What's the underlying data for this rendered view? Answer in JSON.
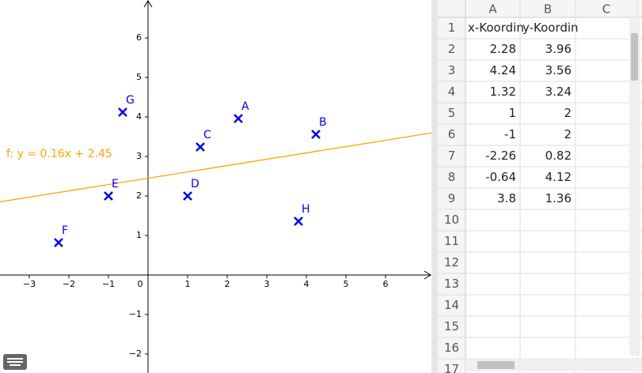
{
  "graphics": {
    "xlim": [
      -3.74,
      7.16
    ],
    "ylim": [
      -2.48,
      6.96
    ],
    "xticks": [
      {
        "value": -3,
        "label": "−3"
      },
      {
        "value": -2,
        "label": "−2"
      },
      {
        "value": -1,
        "label": "−1"
      },
      0,
      1,
      2,
      3,
      4,
      5,
      6
    ],
    "yticks": [
      {
        "value": -2,
        "label": "−2"
      },
      {
        "value": -1,
        "label": "−1"
      },
      1,
      2,
      3,
      4,
      5,
      6
    ],
    "point_color": "#0000ff",
    "points": [
      {
        "name": "A",
        "x": 2.28,
        "y": 3.96
      },
      {
        "name": "B",
        "x": 4.24,
        "y": 3.56
      },
      {
        "name": "C",
        "x": 1.32,
        "y": 3.24
      },
      {
        "name": "D",
        "x": 1,
        "y": 2
      },
      {
        "name": "E",
        "x": -1,
        "y": 2
      },
      {
        "name": "F",
        "x": -2.26,
        "y": 0.82
      },
      {
        "name": "G",
        "x": -0.64,
        "y": 4.12
      },
      {
        "name": "H",
        "x": 3.8,
        "y": 1.36
      }
    ],
    "line": {
      "label": "f: y = 0.16x + 2.45",
      "slope": 0.16,
      "intercept": 2.45,
      "color": "#ffa500"
    }
  },
  "spreadsheet": {
    "columns": [
      "A",
      "B",
      "C"
    ],
    "row_numbers": [
      1,
      2,
      3,
      4,
      5,
      6,
      7,
      8,
      9,
      10,
      11,
      12,
      13,
      14,
      15,
      16,
      17
    ],
    "rows": [
      [
        "x-Koordin",
        "y-Koordin"
      ],
      [
        2.28,
        3.96
      ],
      [
        4.24,
        3.56
      ],
      [
        1.32,
        3.24
      ],
      [
        1,
        2
      ],
      [
        -1,
        2
      ],
      [
        -2.26,
        0.82
      ],
      [
        -0.64,
        4.12
      ],
      [
        3.8,
        1.36
      ]
    ]
  }
}
